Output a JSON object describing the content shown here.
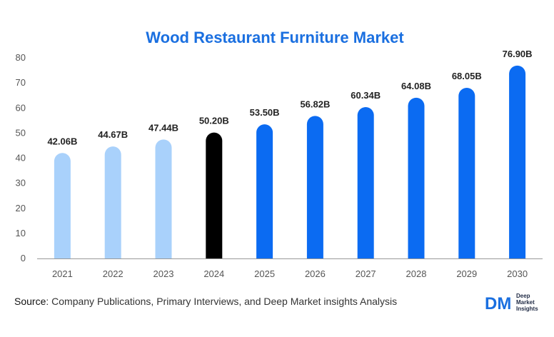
{
  "source": {
    "key": "Source",
    "text": ": Company Publications, Primary Interviews, and Deep Market insights Analysis"
  },
  "logo": {
    "mark": "DM",
    "lines": [
      "Deep",
      "Market",
      "Insights"
    ]
  },
  "colors": {
    "historical": "#a9d1fb",
    "base": "#000000",
    "forecast": "#0b6bf2",
    "title": "#1a6fe0",
    "axis": "#999999"
  },
  "chart_data": {
    "type": "bar",
    "title": "Wood Restaurant Furniture Market",
    "xlabel": "",
    "ylabel": "",
    "ylim": [
      0,
      80
    ],
    "yticks": [
      0,
      10,
      20,
      30,
      40,
      50,
      60,
      70,
      80
    ],
    "grid": false,
    "categories": [
      "2021",
      "2022",
      "2023",
      "2024",
      "2025",
      "2026",
      "2027",
      "2028",
      "2029",
      "2030"
    ],
    "values": [
      42.06,
      44.67,
      47.44,
      50.2,
      53.5,
      56.82,
      60.34,
      64.08,
      68.05,
      76.9
    ],
    "data_labels": [
      "42.06B",
      "44.67B",
      "47.44B",
      "50.20B",
      "53.50B",
      "56.82B",
      "60.34B",
      "64.08B",
      "68.05B",
      "76.90B"
    ],
    "bar_groups": [
      "historical",
      "historical",
      "historical",
      "base",
      "forecast",
      "forecast",
      "forecast",
      "forecast",
      "forecast",
      "forecast"
    ]
  }
}
